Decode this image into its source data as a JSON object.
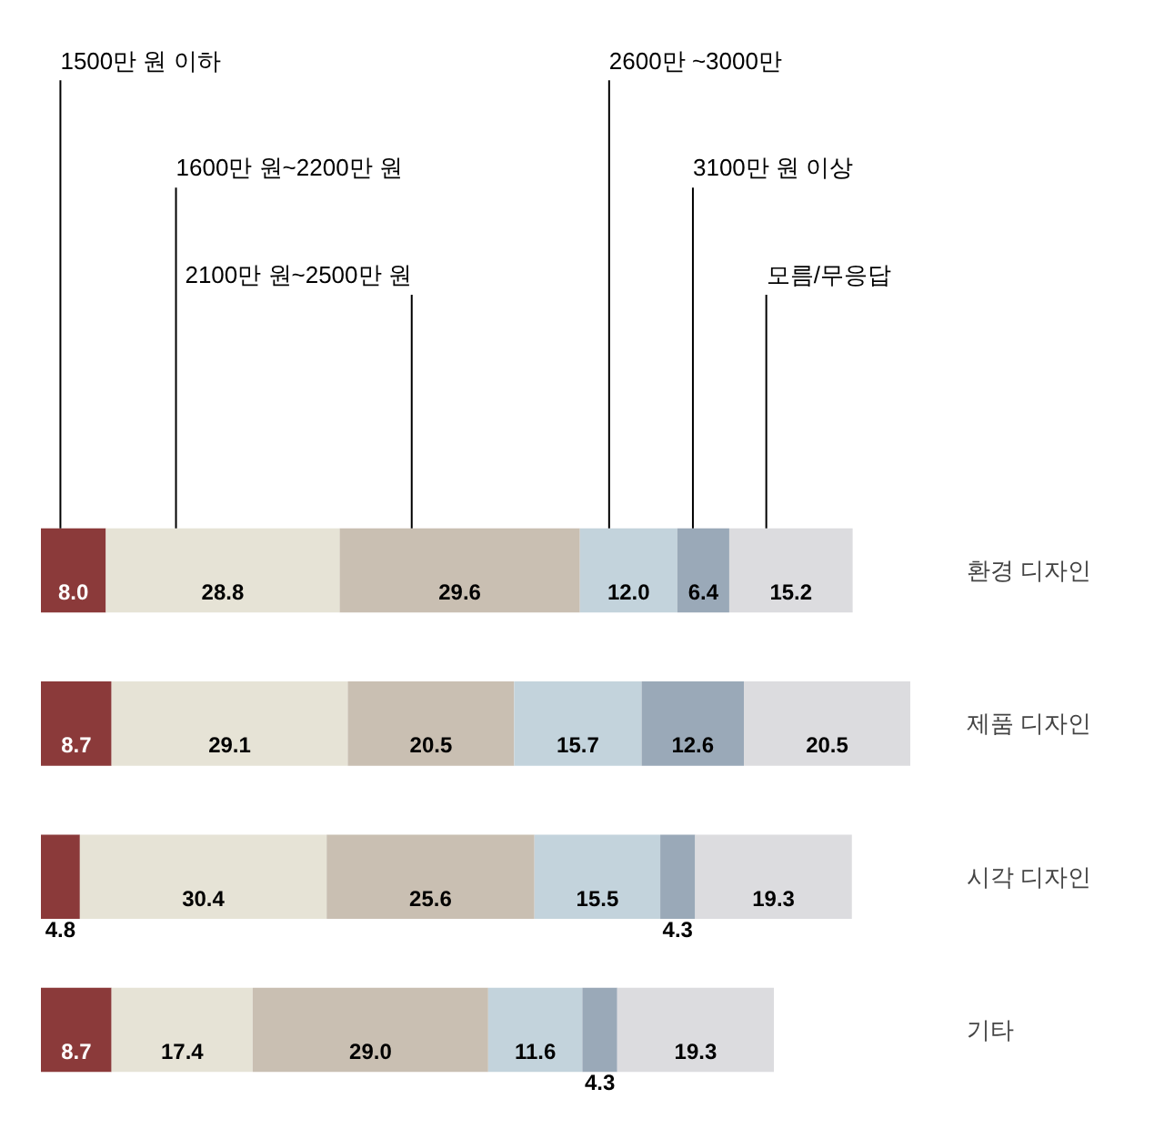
{
  "chart_data": {
    "type": "bar",
    "orientation": "horizontal",
    "stacked": true,
    "legend": "top",
    "grid": false,
    "categories": [
      "환경 디자인",
      "제품 디자인",
      "시각 디자인",
      "기타"
    ],
    "series": [
      {
        "name": "1500만 원 이하",
        "color": "#8b3a3a",
        "values": [
          8.0,
          8.7,
          4.8,
          8.7
        ],
        "value_labels": [
          "8.0",
          "8.7",
          "4.8",
          "8.7"
        ]
      },
      {
        "name": "1600만 원~2200만 원",
        "color": "#e6e3d6",
        "values": [
          28.8,
          29.1,
          30.4,
          17.4
        ],
        "value_labels": [
          "28.8",
          "29.1",
          "30.4",
          "17.4"
        ]
      },
      {
        "name": "2100만 원~2500만 원",
        "color": "#c9bfb2",
        "values": [
          29.6,
          20.5,
          25.6,
          29.0
        ],
        "value_labels": [
          "29.6",
          "20.5",
          "25.6",
          "29.0"
        ]
      },
      {
        "name": "2600만 ~3000만",
        "color": "#c3d3dc",
        "values": [
          12.0,
          15.7,
          15.5,
          11.6
        ],
        "value_labels": [
          "12.0",
          "15.7",
          "15.5",
          "11.6"
        ]
      },
      {
        "name": "3100만 원 이상",
        "color": "#9aa9b8",
        "values": [
          6.4,
          12.6,
          4.3,
          4.3
        ],
        "value_labels": [
          "6.4",
          "12.6",
          "4.3",
          "4.3"
        ]
      },
      {
        "name": "모름/무응답",
        "color": "#dcdcdf",
        "values": [
          15.2,
          20.5,
          19.3,
          19.3
        ],
        "value_labels": [
          "15.2",
          "20.5",
          "19.3",
          "19.3"
        ]
      }
    ]
  }
}
